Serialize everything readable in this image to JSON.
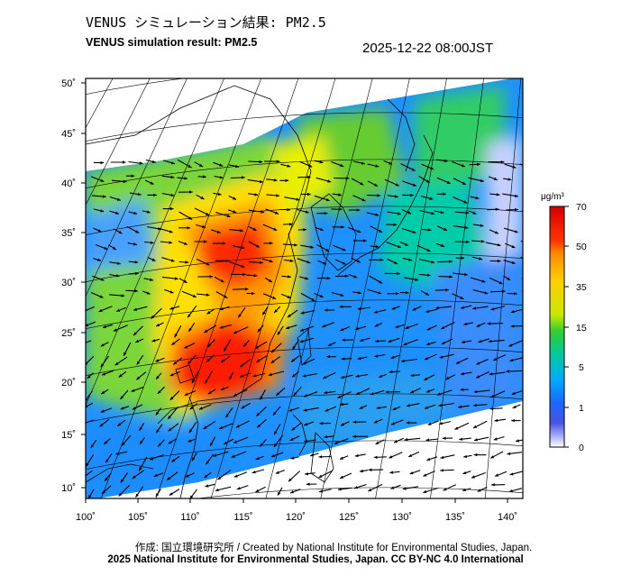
{
  "header": {
    "title_ja": "VENUS シミュレーション結果: PM2.5",
    "title_en": "VENUS simulation result: PM2.5",
    "timestamp": "2025-12-22 08:00JST"
  },
  "map": {
    "lat_labels": [
      "50˚",
      "45˚",
      "40˚",
      "35˚",
      "30˚",
      "25˚",
      "20˚",
      "15˚",
      "10˚"
    ],
    "lon_labels": [
      "100˚",
      "105˚",
      "110˚",
      "115˚",
      "120˚",
      "125˚",
      "130˚",
      "135˚",
      "140˚"
    ],
    "lat_values": [
      50,
      45,
      40,
      35,
      30,
      25,
      20,
      15,
      10
    ],
    "lon_values": [
      100,
      105,
      110,
      115,
      120,
      125,
      130,
      135,
      140
    ]
  },
  "colorbar": {
    "unit": "μg/m³",
    "ticks": [
      "70",
      "50",
      "35",
      "15",
      "5",
      "1",
      "0"
    ],
    "colors": [
      "#ff0000",
      "#ff8c00",
      "#ffff00",
      "#33cc33",
      "#00cccc",
      "#1e64ff",
      "#ffffff"
    ]
  },
  "footer": {
    "line1": "作成: 国立環境研究所 / Created by National Institute for Environmental Studies, Japan.",
    "line2": "2025 National Institute for Environmental Studies, Japan. CC BY-NC 4.0 International"
  }
}
